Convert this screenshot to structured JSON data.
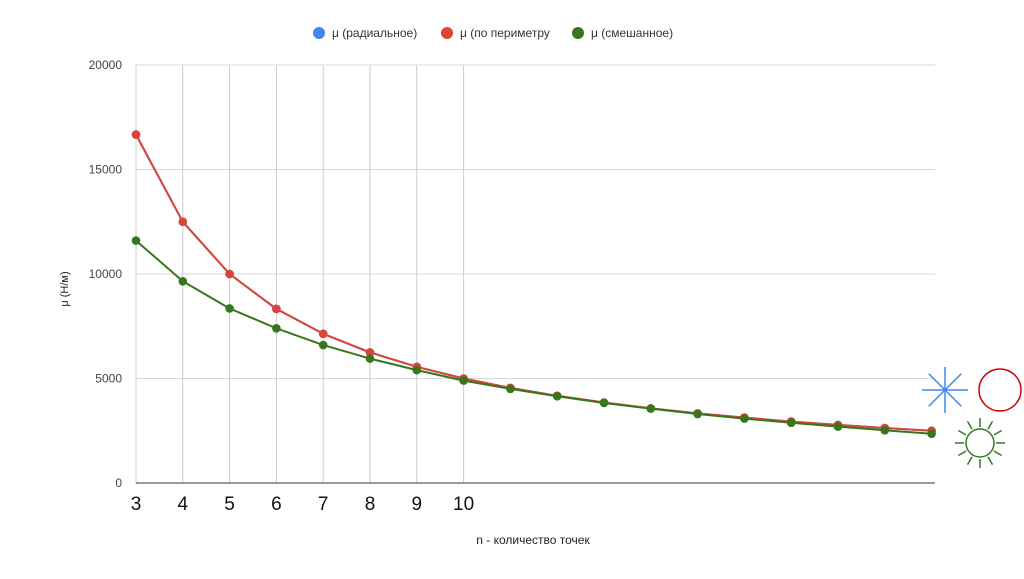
{
  "chart_data": {
    "type": "line",
    "title": "",
    "xlabel": "n - количество точек",
    "ylabel": "μ (Н/м)",
    "ylim": [
      0,
      20000
    ],
    "yticks": [
      0,
      5000,
      10000,
      15000,
      20000
    ],
    "xlim": [
      3,
      20
    ],
    "xtick_labels": [
      "3",
      "4",
      "5",
      "6",
      "7",
      "8",
      "9",
      "10"
    ],
    "x_gridlines": [
      3,
      4,
      5,
      6,
      7,
      8,
      9,
      10
    ],
    "grid": true,
    "legend_position": "top",
    "x": [
      3,
      4,
      5,
      6,
      7,
      8,
      9,
      10,
      11,
      12,
      13,
      14,
      15,
      16,
      17,
      18,
      19,
      20
    ],
    "series": [
      {
        "name": "μ (радиальное)",
        "color": "#4285f4",
        "values": [
          16670,
          12500,
          10000,
          8330,
          7140,
          6250,
          5560,
          5000,
          4550,
          4170,
          3850,
          3570,
          3330,
          3130,
          2940,
          2780,
          2630,
          2500
        ]
      },
      {
        "name": "μ (по периметру",
        "color": "#db4437",
        "values": [
          16670,
          12500,
          10000,
          8330,
          7140,
          6250,
          5560,
          5000,
          4550,
          4170,
          3850,
          3570,
          3330,
          3130,
          2940,
          2780,
          2630,
          2500
        ]
      },
      {
        "name": "μ (смешанное)",
        "color": "#38761d",
        "values": [
          11600,
          9650,
          8350,
          7400,
          6600,
          5950,
          5400,
          4900,
          4500,
          4150,
          3830,
          3560,
          3300,
          3080,
          2880,
          2700,
          2520,
          2360
        ]
      }
    ]
  },
  "icons": {
    "radial": {
      "name": "asterisk-burst-icon",
      "color": "#4285f4"
    },
    "perimeter": {
      "name": "circle-outline-icon",
      "color": "#cc0000"
    },
    "mixed": {
      "name": "sun-rays-icon",
      "color": "#38761d"
    }
  }
}
